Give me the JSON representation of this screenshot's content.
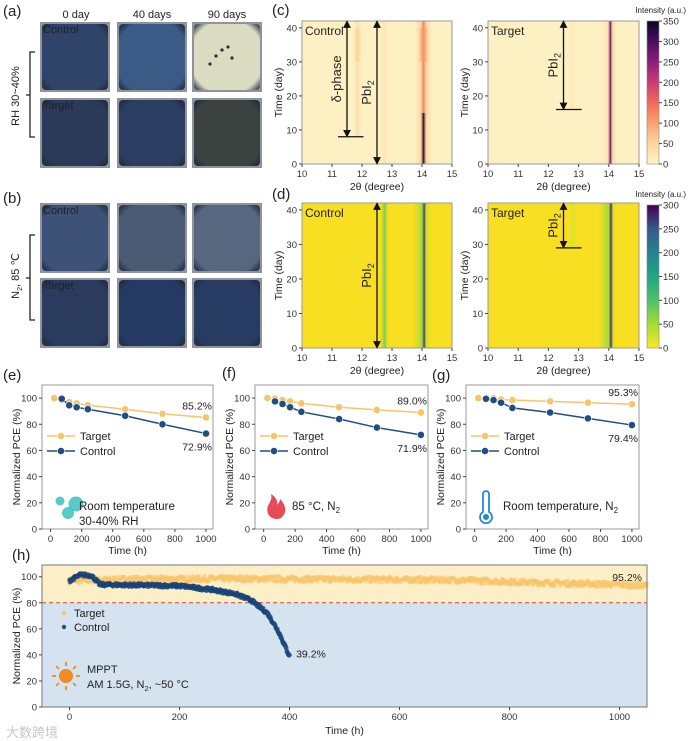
{
  "figure": {
    "panel_labels": {
      "a": "(a)",
      "b": "(b)",
      "c": "(c)",
      "d": "(d)",
      "e": "(e)",
      "f": "(f)",
      "g": "(g)",
      "h": "(h)"
    },
    "photo_columns": [
      "0 day",
      "40 days",
      "90 days"
    ],
    "photo_rows": [
      "Control",
      "Target"
    ],
    "condition_a": {
      "text": "RH 30~40%",
      "color": "#d6407a"
    },
    "condition_b": {
      "main": "N",
      "sub": "2",
      "rest": ", 85 ℃",
      "color": "#5aa02c"
    },
    "photos": {
      "a": [
        [
          "#2f4468",
          "#3b5a86",
          "#dcdcc2"
        ],
        [
          "#2a3a58",
          "#2b3d60",
          "#3b4240"
        ]
      ],
      "b": [
        [
          "#3d5276",
          "#4a5a72",
          "#56677f"
        ],
        [
          "#2a3b5e",
          "#253a62",
          "#283c63"
        ]
      ]
    },
    "watermark": "大数跨境"
  },
  "colorbars": {
    "c": {
      "title": "Intensity (a.u.)",
      "ticks": [
        0,
        50,
        100,
        150,
        200,
        250,
        300,
        350
      ],
      "max": 350,
      "stops": [
        "#fdf3c8",
        "#fcd79f",
        "#f9a46f",
        "#ef6b5a",
        "#c93c74",
        "#8a1f78",
        "#4a0f5e",
        "#0b0420"
      ]
    },
    "d": {
      "title": "Intensity (a.u.)",
      "ticks": [
        0,
        50,
        100,
        150,
        200,
        250,
        300
      ],
      "max": 300,
      "stops": [
        "#fde725",
        "#a6db35",
        "#4cc26c",
        "#21a586",
        "#25838e",
        "#38598c",
        "#440154"
      ]
    }
  },
  "chart_data": [
    {
      "id": "c-control",
      "type": "heatmap",
      "colorbar": "c",
      "sample_label": "Control",
      "base_color": "#fdf1c4",
      "xlabel": "2θ (degree)",
      "ylabel": "Time (day)",
      "xlim": [
        10,
        15
      ],
      "ylim": [
        0,
        42
      ],
      "xticks": [
        10,
        11,
        12,
        13,
        14,
        15
      ],
      "yticks": [
        0,
        10,
        20,
        30,
        40
      ],
      "peaks": [
        {
          "center": 14.05,
          "width": 0.2,
          "intensity": 70,
          "from": 0,
          "to": 42
        },
        {
          "center": 14.05,
          "width": 0.06,
          "intensity": 130,
          "from": 15,
          "to": 42
        },
        {
          "center": 14.05,
          "width": 0.06,
          "intensity": 340,
          "from": 0,
          "to": 15
        },
        {
          "center": 14.05,
          "width": 0.12,
          "intensity": 110,
          "from": 30,
          "to": 40
        },
        {
          "center": 12.75,
          "width": 0.12,
          "intensity": 25,
          "from": 0,
          "to": 42
        },
        {
          "center": 11.85,
          "width": 0.1,
          "intensity": 35,
          "from": 8,
          "to": 42
        },
        {
          "center": 11.85,
          "width": 0.1,
          "intensity": 55,
          "from": 30,
          "to": 40
        }
      ],
      "annotations": [
        {
          "label": "δ-phase",
          "sub": "",
          "x": 11.5,
          "from": 8,
          "to": 42,
          "bar": [
            11.2,
            12.05
          ]
        },
        {
          "label": "PbI",
          "sub": "2",
          "x": 12.5,
          "from": 0,
          "to": 42,
          "bar": null
        }
      ]
    },
    {
      "id": "c-target",
      "type": "heatmap",
      "colorbar": "c",
      "sample_label": "Target",
      "base_color": "#fdf1c4",
      "xlabel": "2θ (degree)",
      "ylabel": "Time (day)",
      "xlim": [
        10,
        15
      ],
      "ylim": [
        0,
        42
      ],
      "xticks": [
        10,
        11,
        12,
        13,
        14,
        15
      ],
      "yticks": [
        0,
        10,
        20,
        30,
        40
      ],
      "peaks": [
        {
          "center": 14.05,
          "width": 0.16,
          "intensity": 60,
          "from": 0,
          "to": 42
        },
        {
          "center": 14.05,
          "width": 0.05,
          "intensity": 280,
          "from": 0,
          "to": 42
        },
        {
          "center": 12.8,
          "width": 0.1,
          "intensity": 18,
          "from": 16,
          "to": 42
        }
      ],
      "annotations": [
        {
          "label": "PbI",
          "sub": "2",
          "x": 12.5,
          "from": 16,
          "to": 42,
          "bar": [
            12.25,
            13.1
          ]
        }
      ]
    },
    {
      "id": "d-control",
      "type": "heatmap",
      "colorbar": "d",
      "sample_label": "Control",
      "base_color": "#f8df22",
      "xlabel": "2θ (degree)",
      "ylabel": "Time (day)",
      "xlim": [
        10,
        15
      ],
      "ylim": [
        0,
        42
      ],
      "xticks": [
        10,
        11,
        12,
        13,
        14,
        15
      ],
      "yticks": [
        0,
        10,
        20,
        30,
        40
      ],
      "peaks": [
        {
          "center": 14.0,
          "width": 0.2,
          "intensity": 55,
          "from": 0,
          "to": 42
        },
        {
          "center": 14.07,
          "width": 0.05,
          "intensity": 270,
          "from": 0,
          "to": 42
        },
        {
          "center": 12.75,
          "width": 0.09,
          "intensity": 75,
          "from": 0,
          "to": 42
        }
      ],
      "annotations": [
        {
          "label": "PbI",
          "sub": "2",
          "x": 12.5,
          "from": 0,
          "to": 42,
          "bar": null
        }
      ]
    },
    {
      "id": "d-target",
      "type": "heatmap",
      "colorbar": "d",
      "sample_label": "Target",
      "base_color": "#f8df22",
      "xlabel": "2θ (degree)",
      "ylabel": "Time (day)",
      "xlim": [
        10,
        15
      ],
      "ylim": [
        0,
        42
      ],
      "xticks": [
        10,
        11,
        12,
        13,
        14,
        15
      ],
      "yticks": [
        0,
        10,
        20,
        30,
        40
      ],
      "peaks": [
        {
          "center": 13.95,
          "width": 0.2,
          "intensity": 50,
          "from": 0,
          "to": 42
        },
        {
          "center": 14.07,
          "width": 0.05,
          "intensity": 280,
          "from": 0,
          "to": 42
        },
        {
          "center": 12.8,
          "width": 0.1,
          "intensity": 20,
          "from": 29,
          "to": 42
        }
      ],
      "annotations": [
        {
          "label": "PbI",
          "sub": "2",
          "x": 12.5,
          "from": 29,
          "to": 42,
          "bar": [
            12.25,
            13.1
          ]
        }
      ]
    },
    {
      "id": "e",
      "type": "line",
      "xlabel": "Time (h)",
      "ylabel": "Normalized PCE (%)",
      "xlim": [
        -55,
        1045
      ],
      "ylim": [
        0,
        110
      ],
      "xticks": [
        0,
        200,
        400,
        600,
        800,
        1000
      ],
      "yticks": [
        0,
        20,
        40,
        60,
        80,
        100
      ],
      "x": [
        24,
        72,
        120,
        168,
        240,
        480,
        720,
        1000
      ],
      "series": [
        {
          "name": "Target",
          "color": "#f8c46a",
          "values": [
            100,
            98.5,
            97,
            96,
            94.5,
            91.5,
            88,
            85.2
          ],
          "end_label": "85.2%"
        },
        {
          "name": "Control",
          "color": "#1f4e85",
          "values": [
            null,
            99.5,
            94.5,
            93,
            91.5,
            86.5,
            80,
            72.9
          ],
          "end_label": "72.9%"
        }
      ],
      "note": {
        "icon": "bubbles-icon",
        "lines": [
          "Room temperature",
          "30-40% RH"
        ],
        "color": "#3cbfc0"
      }
    },
    {
      "id": "f",
      "type": "line",
      "xlabel": "Time (h)",
      "ylabel": "Normalized PCE (%)",
      "xlim": [
        -55,
        1045
      ],
      "ylim": [
        0,
        110
      ],
      "xticks": [
        0,
        200,
        400,
        600,
        800,
        1000
      ],
      "yticks": [
        0,
        20,
        40,
        60,
        80,
        100
      ],
      "x": [
        24,
        72,
        120,
        168,
        240,
        480,
        720,
        1000
      ],
      "series": [
        {
          "name": "Target",
          "color": "#f8c46a",
          "values": [
            100,
            99.5,
            98.5,
            97.5,
            96,
            93,
            91,
            89.0
          ],
          "end_label": "89.0%"
        },
        {
          "name": "Control",
          "color": "#1f4e85",
          "values": [
            null,
            97.5,
            95.5,
            93,
            89.5,
            84,
            77.5,
            71.9
          ],
          "end_label": "71.9%"
        }
      ],
      "note": {
        "icon": "flame-icon",
        "lines": [
          "85 °C, N"
        ],
        "sub": "2",
        "color": "#e84b57"
      }
    },
    {
      "id": "g",
      "type": "line",
      "xlabel": "Time (h)",
      "ylabel": "Normalized PCE (%)",
      "xlim": [
        -55,
        1045
      ],
      "ylim": [
        0,
        110
      ],
      "xticks": [
        0,
        200,
        400,
        600,
        800,
        1000
      ],
      "yticks": [
        0,
        20,
        40,
        60,
        80,
        100
      ],
      "x": [
        24,
        72,
        120,
        168,
        240,
        480,
        720,
        1000
      ],
      "series": [
        {
          "name": "Target",
          "color": "#f8c46a",
          "values": [
            100,
            100,
            100,
            99,
            98.5,
            97.5,
            96.5,
            95.3
          ],
          "end_label": "95.3%"
        },
        {
          "name": "Control",
          "color": "#1f4e85",
          "values": [
            null,
            99.5,
            98.5,
            96.5,
            92.5,
            89,
            84.5,
            79.4
          ],
          "end_label": "79.4%"
        }
      ],
      "note": {
        "icon": "thermometer-icon",
        "lines": [
          "Room temperature, N"
        ],
        "sub": "2",
        "color": "#1b8ad6"
      }
    },
    {
      "id": "h",
      "type": "scatter",
      "xlabel": "Time (h)",
      "ylabel": "Normalized PCE (%)",
      "xlim": [
        -50,
        1050
      ],
      "ylim": [
        0,
        109
      ],
      "xticks": [
        0,
        200,
        400,
        600,
        800,
        1000
      ],
      "yticks": [
        0,
        20,
        40,
        60,
        80,
        100
      ],
      "threshold": 80,
      "upper_bg": "#fcefc8",
      "lower_bg": "#d5e2ef",
      "threshold_color": "#d9403a",
      "series": [
        {
          "name": "Target",
          "color": "#f8c46a",
          "step_h": 1,
          "noise": 2.2,
          "trend": [
            [
              0,
              97
            ],
            [
              100,
              98
            ],
            [
              300,
              98.5
            ],
            [
              500,
              98
            ],
            [
              700,
              97.5
            ],
            [
              850,
              95.5
            ],
            [
              1000,
              94
            ],
            [
              1050,
              93
            ]
          ],
          "end_label": "95.2%"
        },
        {
          "name": "Control",
          "color": "#1f4e85",
          "step_h": 1,
          "noise": 1.3,
          "trend": [
            [
              0,
              97
            ],
            [
              20,
              101.5
            ],
            [
              40,
              101
            ],
            [
              55,
              94
            ],
            [
              200,
              93
            ],
            [
              260,
              90
            ],
            [
              300,
              87
            ],
            [
              330,
              82
            ],
            [
              360,
              72
            ],
            [
              380,
              58
            ],
            [
              400,
              39
            ]
          ],
          "end_label": "39.2%"
        }
      ],
      "note": {
        "icon": "sun-icon",
        "line1": "MPPT",
        "line2a": "AM 1.5G, N",
        "sub": "2",
        "line2b": ", ~50 °C",
        "color": "#f08a24"
      }
    }
  ]
}
